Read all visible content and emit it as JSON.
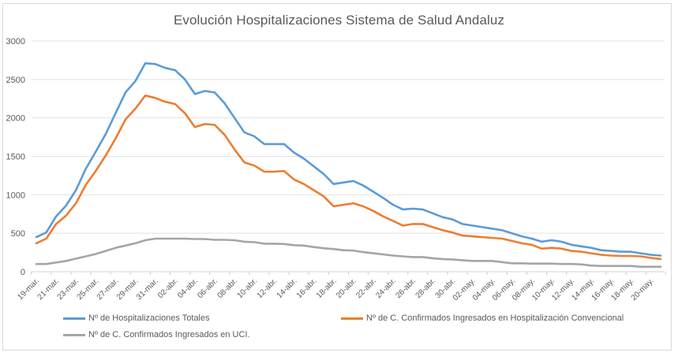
{
  "chart_data": {
    "type": "line",
    "title": "Evolución Hospitalizaciones Sistema de Salud Andaluz",
    "xlabel": "",
    "ylabel": "",
    "ylim": [
      0,
      3000
    ],
    "yticks": [
      "0",
      "500",
      "1000",
      "1500",
      "2000",
      "2500",
      "3000"
    ],
    "ytick_values": [
      0,
      500,
      1000,
      1500,
      2000,
      2500,
      3000
    ],
    "grid": true,
    "legend_position": "bottom",
    "x": [
      "19-mar.",
      "20-mar.",
      "21-mar.",
      "22-mar.",
      "23-mar.",
      "24-mar.",
      "25-mar.",
      "26-mar.",
      "27-mar.",
      "28-mar.",
      "29-mar.",
      "30-mar.",
      "31-mar.",
      "01-abr.",
      "02-abr.",
      "03-abr.",
      "04-abr.",
      "05-abr.",
      "06-abr.",
      "07-abr.",
      "08-abr.",
      "09-abr.",
      "10-abr.",
      "11-abr.",
      "12-abr.",
      "13-abr.",
      "14-abr.",
      "15-abr.",
      "16-abr.",
      "17-abr.",
      "18-abr.",
      "19-abr.",
      "20-abr.",
      "21-abr.",
      "22-abr.",
      "23-abr.",
      "24-abr.",
      "25-abr.",
      "26-abr.",
      "27-abr.",
      "28-abr.",
      "29-abr.",
      "30-abr.",
      "01-may.",
      "02-may.",
      "03-may.",
      "04-may.",
      "05-may.",
      "06-may.",
      "07-may.",
      "08-may.",
      "09-may.",
      "10-may.",
      "11-may.",
      "12-may.",
      "13-may.",
      "14-may.",
      "15-may.",
      "16-may.",
      "17-may.",
      "18-may.",
      "19-may.",
      "20-may.",
      "21-may."
    ],
    "xtick_labels": [
      "19-mar.",
      "21-mar.",
      "23-mar.",
      "25-mar.",
      "27-mar.",
      "29-mar.",
      "31-mar.",
      "02-abr.",
      "04-abr.",
      "06-abr.",
      "08-abr.",
      "10-abr.",
      "12-abr.",
      "14-abr.",
      "16-abr.",
      "18-abr.",
      "20-abr.",
      "22-abr.",
      "24-abr.",
      "26-abr.",
      "28-abr.",
      "30-abr.",
      "02-may.",
      "04-may.",
      "06-may.",
      "08-may.",
      "10-may.",
      "12-may.",
      "14-may.",
      "16-may.",
      "18-may.",
      "20-may."
    ],
    "series": [
      {
        "name": "Nº de Hospitalizaciones Totales",
        "color": "#5b9bd5",
        "values": [
          450,
          510,
          720,
          860,
          1060,
          1340,
          1560,
          1790,
          2060,
          2330,
          2480,
          2710,
          2700,
          2650,
          2620,
          2500,
          2310,
          2350,
          2330,
          2190,
          2000,
          1810,
          1760,
          1660,
          1660,
          1660,
          1550,
          1470,
          1370,
          1270,
          1140,
          1160,
          1180,
          1120,
          1040,
          960,
          870,
          810,
          820,
          810,
          760,
          710,
          680,
          620,
          600,
          580,
          560,
          540,
          500,
          460,
          430,
          390,
          410,
          390,
          350,
          330,
          310,
          280,
          270,
          260,
          260,
          240,
          220,
          210
        ]
      },
      {
        "name": "Nº de C. Confirmados Ingresados en Hospitalización Convencional",
        "color": "#ed7d31",
        "values": [
          370,
          430,
          620,
          730,
          890,
          1130,
          1310,
          1510,
          1730,
          1980,
          2120,
          2290,
          2260,
          2210,
          2180,
          2060,
          1880,
          1920,
          1910,
          1780,
          1590,
          1420,
          1380,
          1300,
          1300,
          1310,
          1200,
          1140,
          1060,
          980,
          850,
          870,
          890,
          850,
          790,
          720,
          660,
          600,
          620,
          620,
          580,
          540,
          510,
          470,
          460,
          450,
          440,
          430,
          400,
          370,
          350,
          300,
          310,
          300,
          270,
          260,
          240,
          220,
          210,
          205,
          205,
          200,
          180,
          165
        ]
      },
      {
        "name": "Nº de C. Confirmados Ingresados en UCI.",
        "color": "#a5a5a5",
        "values": [
          100,
          100,
          120,
          140,
          170,
          200,
          230,
          270,
          310,
          340,
          370,
          410,
          430,
          430,
          430,
          430,
          425,
          425,
          415,
          415,
          410,
          390,
          385,
          365,
          365,
          360,
          345,
          340,
          320,
          305,
          295,
          280,
          275,
          255,
          240,
          225,
          210,
          200,
          190,
          190,
          175,
          165,
          160,
          150,
          140,
          140,
          140,
          125,
          110,
          110,
          105,
          105,
          105,
          100,
          100,
          95,
          80,
          75,
          75,
          75,
          75,
          65,
          65,
          65
        ]
      }
    ]
  }
}
